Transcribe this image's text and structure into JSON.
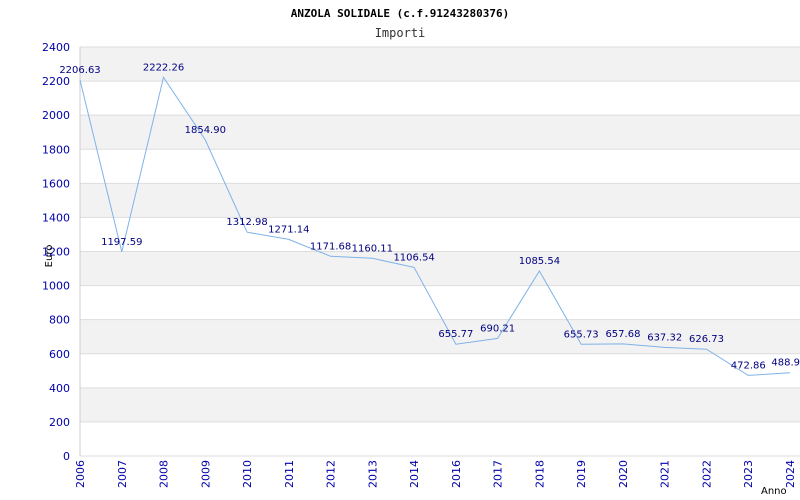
{
  "chart_data": {
    "type": "line",
    "title": "ANZOLA SOLIDALE (c.f.91243280376)",
    "subtitle": "Importi",
    "xlabel": "Anno",
    "ylabel": "Euro",
    "x": [
      "2006",
      "2007",
      "2008",
      "2009",
      "2010",
      "2011",
      "2012",
      "2013",
      "2014",
      "2016",
      "2017",
      "2018",
      "2019",
      "2020",
      "2021",
      "2022",
      "2023",
      "2024"
    ],
    "series": [
      {
        "values": [
          2206.63,
          1197.59,
          2222.26,
          1854.9,
          1312.98,
          1271.14,
          1171.68,
          1160.11,
          1106.54,
          655.77,
          690.21,
          1085.54,
          655.73,
          657.68,
          637.32,
          626.73,
          472.86,
          488.94
        ],
        "labels": [
          "2206.63",
          "1197.59",
          "2222.26",
          "1854.90",
          "1312.98",
          "1271.14",
          "1171.68",
          "1160.11",
          "1106.54",
          "655.77",
          "690.21",
          "1085.54",
          "655.73",
          "657.68",
          "637.32",
          "626.73",
          "472.86",
          "488.9"
        ]
      }
    ],
    "ylim": [
      0,
      2400
    ],
    "yticks": [
      0,
      200,
      400,
      600,
      800,
      1000,
      1200,
      1400,
      1600,
      1800,
      2000,
      2200,
      2400
    ],
    "grid": true,
    "colors": {
      "line": "#7fb2e8",
      "band": "#f2f2f2",
      "gridline": "#dddddd",
      "tick_text": "#0000aa",
      "label_text": "#000080"
    }
  }
}
